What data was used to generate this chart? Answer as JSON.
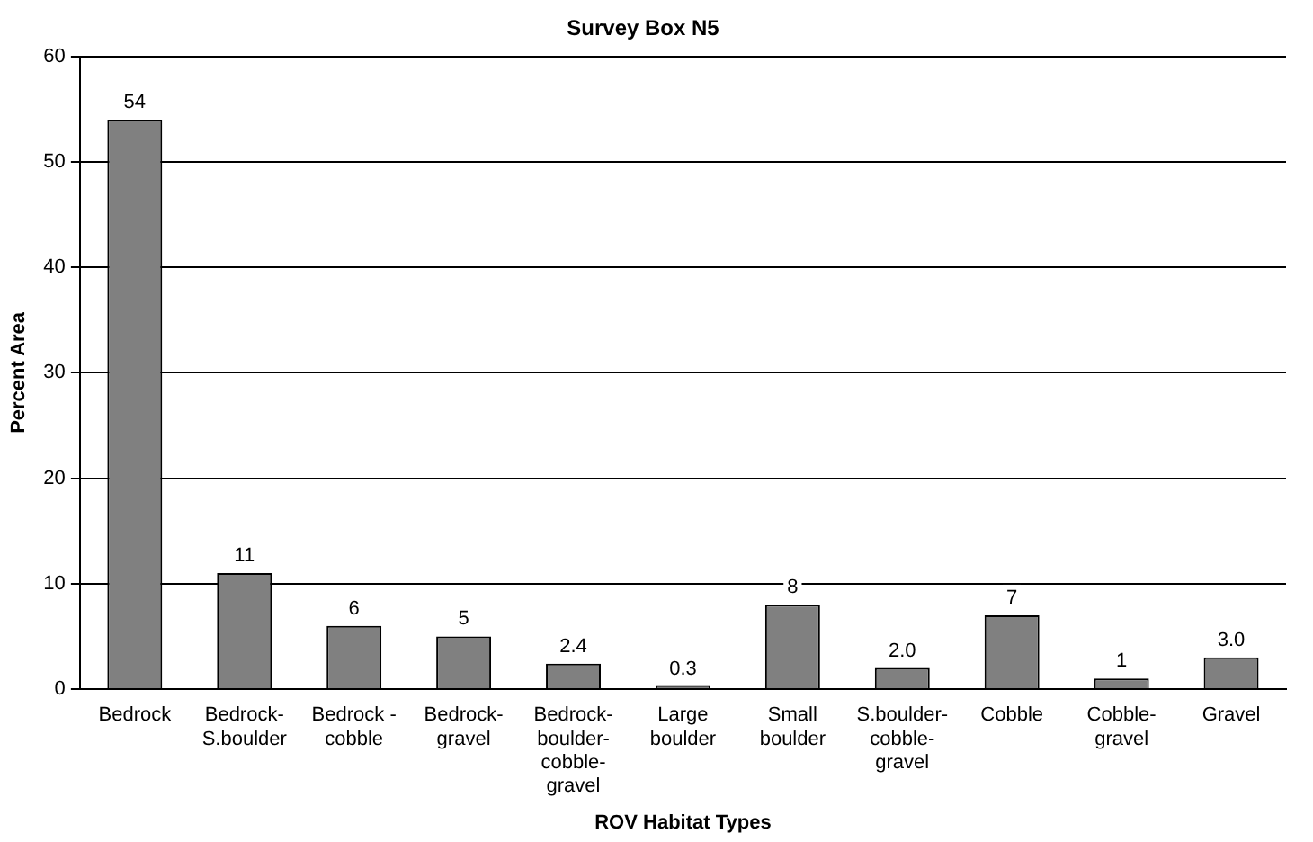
{
  "chart_data": {
    "type": "bar",
    "title": "Survey Box N5",
    "xlabel": "ROV Habitat Types",
    "ylabel": "Percent Area",
    "categories": [
      "Bedrock",
      "Bedrock-\nS.boulder",
      "Bedrock -\ncobble",
      "Bedrock-\ngravel",
      "Bedrock-\nboulder-\ncobble-\ngravel",
      "Large\nboulder",
      "Small\nboulder",
      "S.boulder-\ncobble-\ngravel",
      "Cobble",
      "Cobble-\ngravel",
      "Gravel"
    ],
    "values": [
      54,
      11,
      6,
      5,
      2.4,
      0.3,
      8,
      2.0,
      7,
      1,
      3.0
    ],
    "value_labels": [
      "54",
      "11",
      "6",
      "5",
      "2.4",
      "0.3",
      "8",
      "2.0",
      "7",
      "1",
      "3.0"
    ],
    "color": "#808080",
    "ylim": [
      0,
      60
    ],
    "yticks": [
      0,
      10,
      20,
      30,
      40,
      50,
      60
    ],
    "grid": "y",
    "legend": false
  }
}
